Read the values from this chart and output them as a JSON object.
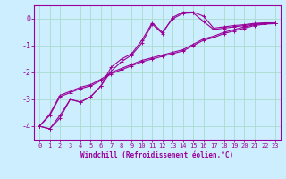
{
  "xlabel": "Windchill (Refroidissement éolien,°C)",
  "ylabel": "",
  "bg_color": "#cceeff",
  "line_color": "#990099",
  "grid_color": "#aaddcc",
  "x_ticks": [
    0,
    1,
    2,
    3,
    4,
    5,
    6,
    7,
    8,
    9,
    10,
    11,
    12,
    13,
    14,
    15,
    16,
    17,
    18,
    19,
    20,
    21,
    22,
    23
  ],
  "y_ticks": [
    0,
    -1,
    -2,
    -3,
    -4
  ],
  "xlim": [
    -0.5,
    23.5
  ],
  "ylim": [
    -4.5,
    0.5
  ],
  "series": [
    [
      -4.0,
      -4.1,
      -3.7,
      -3.0,
      -3.1,
      -2.9,
      -2.5,
      -1.8,
      -1.5,
      -1.3,
      -0.8,
      -0.15,
      -0.5,
      0.0,
      0.2,
      0.22,
      -0.1,
      -0.4,
      -0.35,
      -0.3,
      -0.25,
      -0.2,
      -0.18,
      -0.18
    ],
    [
      -4.0,
      -4.1,
      -3.6,
      -3.0,
      -3.1,
      -2.9,
      -2.5,
      -1.95,
      -1.6,
      -1.35,
      -0.9,
      -0.2,
      -0.55,
      0.05,
      0.25,
      0.25,
      0.1,
      -0.35,
      -0.3,
      -0.25,
      -0.22,
      -0.17,
      -0.15,
      -0.15
    ],
    [
      -4.0,
      -3.6,
      -2.9,
      -2.75,
      -2.6,
      -2.5,
      -2.3,
      -2.05,
      -1.9,
      -1.75,
      -1.6,
      -1.5,
      -1.4,
      -1.3,
      -1.2,
      -1.0,
      -0.8,
      -0.7,
      -0.55,
      -0.45,
      -0.35,
      -0.25,
      -0.2,
      -0.18
    ],
    [
      -4.0,
      -3.55,
      -2.85,
      -2.7,
      -2.55,
      -2.45,
      -2.25,
      -2.0,
      -1.85,
      -1.7,
      -1.55,
      -1.45,
      -1.35,
      -1.25,
      -1.15,
      -0.95,
      -0.75,
      -0.65,
      -0.5,
      -0.4,
      -0.3,
      -0.22,
      -0.17,
      -0.15
    ]
  ],
  "tick_fontsize": 5,
  "label_fontsize": 5.5,
  "ytick_fontsize": 6
}
